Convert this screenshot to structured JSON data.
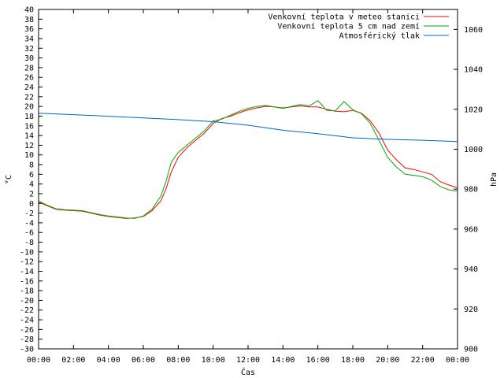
{
  "chart_data": {
    "type": "line",
    "title": "",
    "xlabel": "Čas",
    "ylabel": "°C",
    "y2label": "hPa",
    "x_ticks": [
      "00:00",
      "02:00",
      "04:00",
      "06:00",
      "08:00",
      "10:00",
      "12:00",
      "14:00",
      "16:00",
      "18:00",
      "20:00",
      "22:00",
      "00:00"
    ],
    "xlim_hours": [
      0,
      24
    ],
    "ylim": [
      -30,
      40
    ],
    "y_ticks": [
      40,
      38,
      36,
      34,
      32,
      30,
      28,
      26,
      24,
      22,
      20,
      18,
      16,
      14,
      12,
      10,
      8,
      6,
      4,
      2,
      0,
      -2,
      -4,
      -6,
      -8,
      -10,
      -12,
      -14,
      -16,
      -18,
      -20,
      -22,
      -24,
      -26,
      -28,
      -30
    ],
    "y2lim": [
      900,
      1070
    ],
    "y2_ticks": [
      1060,
      1040,
      1020,
      1000,
      980,
      960,
      940,
      920,
      900
    ],
    "legend_position": "top-right",
    "series": [
      {
        "name": "Venkovní teplota v meteo stanici",
        "color": "#ff0000",
        "axis": "y",
        "x": [
          0,
          0.5,
          1,
          1.5,
          2,
          2.5,
          3,
          3.5,
          4,
          4.5,
          5,
          5.5,
          6,
          6.5,
          7,
          7.3,
          7.6,
          8,
          8.5,
          9,
          9.5,
          10,
          10.5,
          11,
          11.5,
          12,
          12.5,
          13,
          13.5,
          14,
          14.5,
          15,
          15.5,
          16,
          16.5,
          17,
          17.5,
          18,
          18.5,
          19,
          19.5,
          20,
          20.5,
          21,
          21.5,
          22,
          22.5,
          23,
          23.5,
          24
        ],
        "values": [
          0.3,
          -0.5,
          -1.2,
          -1.4,
          -1.5,
          -1.6,
          -2.0,
          -2.4,
          -2.7,
          -2.9,
          -3.1,
          -3.0,
          -2.7,
          -1.5,
          0.5,
          3.0,
          6.5,
          9.5,
          11.5,
          13.0,
          14.5,
          16.5,
          17.5,
          18.0,
          18.7,
          19.3,
          19.7,
          20.0,
          19.9,
          19.7,
          19.9,
          20.1,
          19.9,
          19.9,
          19.4,
          19.0,
          18.9,
          19.2,
          18.6,
          17.0,
          14.5,
          11.0,
          9.0,
          7.3,
          7.0,
          6.5,
          6.0,
          4.5,
          3.8,
          3.2
        ]
      },
      {
        "name": "Venkovní teplota 5 cm nad zemí",
        "color": "#00aa00",
        "axis": "y",
        "x": [
          0,
          0.5,
          1,
          1.5,
          2,
          2.5,
          3,
          3.5,
          4,
          4.5,
          5,
          5.5,
          6,
          6.5,
          7,
          7.3,
          7.6,
          8,
          8.5,
          9,
          9.5,
          10,
          10.5,
          11,
          11.5,
          12,
          12.5,
          13,
          13.5,
          14,
          14.5,
          15,
          15.5,
          16,
          16.5,
          17,
          17.5,
          18,
          18.5,
          19,
          19.5,
          20,
          20.5,
          21,
          21.5,
          22,
          22.5,
          23,
          23.5,
          24
        ],
        "values": [
          0.5,
          -0.4,
          -1.1,
          -1.3,
          -1.4,
          -1.5,
          -1.9,
          -2.3,
          -2.6,
          -2.8,
          -3.0,
          -3.1,
          -2.6,
          -1.2,
          1.5,
          4.5,
          8.5,
          10.5,
          12.0,
          13.5,
          15.0,
          17.0,
          17.4,
          18.2,
          19.0,
          19.6,
          20.0,
          20.2,
          19.9,
          19.6,
          20.0,
          20.4,
          20.1,
          21.2,
          19.2,
          19.1,
          21.0,
          19.3,
          18.5,
          16.5,
          13.0,
          9.5,
          7.5,
          6.0,
          5.8,
          5.5,
          4.8,
          3.5,
          2.8,
          2.5
        ]
      },
      {
        "name": "Atmosférický tlak",
        "color": "#0066cc",
        "axis": "y2",
        "x": [
          0,
          2,
          4,
          6,
          8,
          10,
          12,
          14,
          16,
          18,
          20,
          22,
          24
        ],
        "values": [
          1018.0,
          1017.3,
          1016.5,
          1015.7,
          1014.8,
          1013.8,
          1012.0,
          1009.5,
          1007.8,
          1005.7,
          1004.9,
          1004.5,
          1003.8
        ]
      }
    ]
  }
}
